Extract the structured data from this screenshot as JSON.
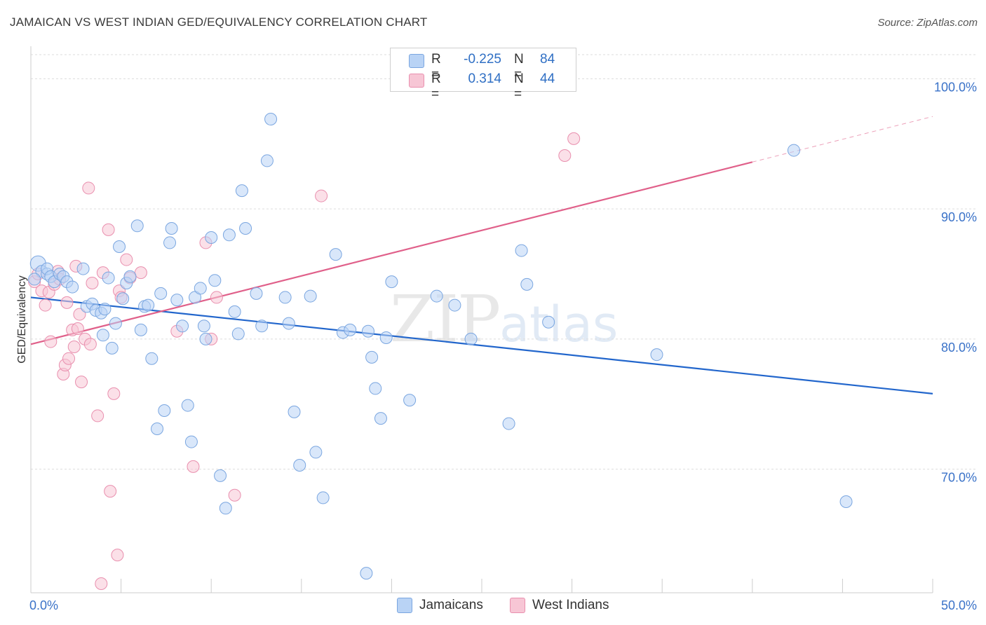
{
  "title": "JAMAICAN VS WEST INDIAN GED/EQUIVALENCY CORRELATION CHART",
  "source": "Source: ZipAtlas.com",
  "watermark": {
    "zip": "ZIP",
    "atlas": "atlas"
  },
  "colors": {
    "blue_fill": "#b9d3f5",
    "blue_stroke": "#7aa6e0",
    "blue_line": "#2266cc",
    "pink_fill": "#f7c6d5",
    "pink_stroke": "#e98fae",
    "pink_line": "#e0608a",
    "axis_label": "#3a72c8",
    "grid": "#dddddd"
  },
  "legend": {
    "rows": [
      {
        "r_label": "R =",
        "r_value": "-0.225",
        "n_label": "N =",
        "n_value": "84"
      },
      {
        "r_label": "R =",
        "r_value": "0.314",
        "n_label": "N =",
        "n_value": "44"
      }
    ]
  },
  "bottom_legend": {
    "jamaicans": "Jamaicans",
    "west_indians": "West Indians"
  },
  "chart_data": {
    "type": "scatter",
    "title": "JAMAICAN VS WEST INDIAN GED/EQUIVALENCY CORRELATION CHART",
    "xlabel": "",
    "ylabel": "GED/Equivalency",
    "xlim": [
      0,
      50
    ],
    "ylim": [
      60.5,
      102.5
    ],
    "x_tick_labels": [
      "0.0%",
      "50.0%"
    ],
    "y_ticks": [
      70,
      80,
      90,
      100
    ],
    "y_tick_labels": [
      "70.0%",
      "80.0%",
      "90.0%",
      "100.0%"
    ],
    "grid": true,
    "legend_position": "top-center",
    "series": [
      {
        "name": "Jamaicans",
        "r": -0.225,
        "n": 84,
        "trend": {
          "x": [
            0,
            50
          ],
          "y": [
            83.2,
            75.8
          ]
        },
        "points": [
          [
            0.4,
            85.8
          ],
          [
            0.6,
            85.2
          ],
          [
            0.9,
            85.0
          ],
          [
            0.9,
            85.4
          ],
          [
            1.1,
            84.8
          ],
          [
            1.3,
            84.4
          ],
          [
            1.6,
            85.0
          ],
          [
            1.8,
            84.8
          ],
          [
            2.0,
            84.4
          ],
          [
            2.3,
            84.0
          ],
          [
            2.9,
            85.4
          ],
          [
            3.1,
            82.5
          ],
          [
            3.4,
            82.7
          ],
          [
            3.6,
            82.2
          ],
          [
            3.9,
            82.0
          ],
          [
            4.0,
            80.3
          ],
          [
            4.1,
            82.3
          ],
          [
            4.3,
            84.7
          ],
          [
            4.5,
            79.3
          ],
          [
            4.7,
            81.2
          ],
          [
            4.9,
            87.1
          ],
          [
            5.1,
            83.1
          ],
          [
            5.3,
            84.3
          ],
          [
            5.5,
            84.8
          ],
          [
            5.9,
            88.7
          ],
          [
            6.1,
            80.7
          ],
          [
            6.3,
            82.5
          ],
          [
            6.5,
            82.6
          ],
          [
            6.7,
            78.5
          ],
          [
            7.0,
            73.1
          ],
          [
            7.2,
            83.5
          ],
          [
            7.4,
            74.5
          ],
          [
            7.7,
            87.4
          ],
          [
            7.8,
            88.5
          ],
          [
            8.1,
            83.0
          ],
          [
            8.4,
            81.0
          ],
          [
            8.7,
            74.9
          ],
          [
            8.9,
            72.1
          ],
          [
            9.1,
            83.2
          ],
          [
            9.4,
            83.9
          ],
          [
            9.6,
            81.0
          ],
          [
            9.7,
            80.0
          ],
          [
            10.0,
            87.8
          ],
          [
            10.2,
            84.5
          ],
          [
            10.5,
            69.5
          ],
          [
            10.8,
            67.0
          ],
          [
            11.0,
            88.0
          ],
          [
            11.3,
            82.1
          ],
          [
            11.5,
            80.4
          ],
          [
            11.7,
            91.4
          ],
          [
            11.9,
            88.5
          ],
          [
            12.5,
            83.5
          ],
          [
            12.8,
            81.0
          ],
          [
            13.1,
            93.7
          ],
          [
            13.3,
            96.9
          ],
          [
            14.1,
            83.2
          ],
          [
            14.3,
            81.2
          ],
          [
            14.6,
            74.4
          ],
          [
            14.9,
            70.3
          ],
          [
            15.5,
            83.3
          ],
          [
            15.8,
            71.3
          ],
          [
            16.2,
            67.8
          ],
          [
            16.9,
            86.5
          ],
          [
            17.3,
            80.5
          ],
          [
            17.7,
            80.7
          ],
          [
            18.6,
            62.0
          ],
          [
            18.7,
            80.6
          ],
          [
            18.9,
            78.6
          ],
          [
            19.1,
            76.2
          ],
          [
            19.4,
            73.9
          ],
          [
            19.7,
            80.1
          ],
          [
            20.0,
            84.4
          ],
          [
            21.0,
            75.3
          ],
          [
            22.5,
            83.3
          ],
          [
            23.5,
            82.6
          ],
          [
            24.4,
            80.0
          ],
          [
            26.5,
            73.5
          ],
          [
            27.2,
            86.8
          ],
          [
            27.5,
            84.2
          ],
          [
            28.7,
            81.3
          ],
          [
            34.7,
            78.8
          ],
          [
            42.3,
            94.5
          ],
          [
            45.2,
            67.5
          ],
          [
            0.2,
            84.6
          ]
        ]
      },
      {
        "name": "West Indians",
        "r": 0.314,
        "n": 44,
        "trend": {
          "x": [
            0,
            40
          ],
          "y": [
            79.6,
            93.6
          ]
        },
        "trend_dashed": {
          "x": [
            40,
            50
          ],
          "y": [
            93.6,
            97.1
          ]
        },
        "points": [
          [
            0.2,
            84.4
          ],
          [
            0.4,
            85.0
          ],
          [
            0.6,
            83.7
          ],
          [
            0.8,
            82.6
          ],
          [
            1.0,
            83.6
          ],
          [
            1.1,
            79.8
          ],
          [
            1.3,
            84.2
          ],
          [
            1.5,
            85.2
          ],
          [
            1.6,
            84.6
          ],
          [
            1.8,
            77.3
          ],
          [
            1.9,
            78.0
          ],
          [
            2.0,
            82.8
          ],
          [
            2.1,
            78.5
          ],
          [
            2.3,
            80.7
          ],
          [
            2.5,
            85.6
          ],
          [
            2.6,
            80.8
          ],
          [
            2.7,
            81.9
          ],
          [
            2.8,
            76.7
          ],
          [
            3.0,
            80.0
          ],
          [
            3.2,
            91.6
          ],
          [
            3.3,
            79.6
          ],
          [
            3.4,
            84.3
          ],
          [
            3.7,
            74.1
          ],
          [
            3.9,
            61.2
          ],
          [
            4.0,
            85.1
          ],
          [
            4.3,
            88.4
          ],
          [
            4.4,
            68.3
          ],
          [
            4.6,
            75.8
          ],
          [
            4.8,
            63.4
          ],
          [
            4.9,
            83.7
          ],
          [
            5.0,
            83.2
          ],
          [
            5.3,
            86.1
          ],
          [
            5.5,
            84.7
          ],
          [
            6.1,
            85.1
          ],
          [
            8.1,
            80.6
          ],
          [
            9.0,
            70.2
          ],
          [
            9.7,
            87.4
          ],
          [
            10.0,
            80.0
          ],
          [
            10.3,
            83.2
          ],
          [
            11.3,
            68.0
          ],
          [
            16.1,
            91.0
          ],
          [
            29.6,
            94.1
          ],
          [
            30.1,
            95.4
          ],
          [
            2.4,
            79.4
          ]
        ]
      }
    ]
  }
}
